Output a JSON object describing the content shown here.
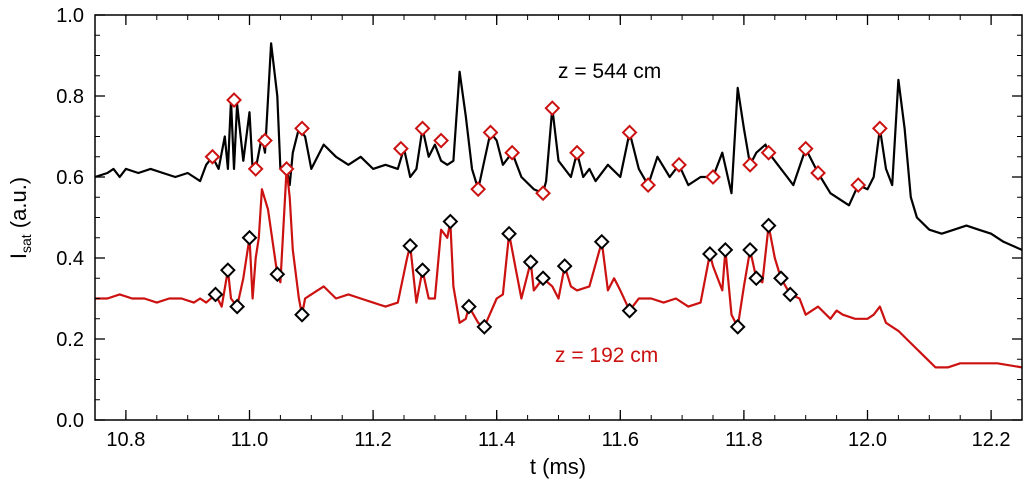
{
  "chart_data": {
    "type": "line",
    "title": "",
    "xlabel": "t (ms)",
    "ylabel": {
      "main": "I",
      "sub": "sat",
      "rest": " (a.u.)"
    },
    "xlim": [
      10.75,
      12.25
    ],
    "ylim": [
      0.0,
      1.0
    ],
    "x_ticks": [
      "10.8",
      "11.0",
      "11.2",
      "11.4",
      "11.6",
      "11.8",
      "12.0",
      "12.2"
    ],
    "x_tick_values": [
      10.8,
      11.0,
      11.2,
      11.4,
      11.6,
      11.8,
      12.0,
      12.2
    ],
    "y_ticks": [
      "0.0",
      "0.2",
      "0.4",
      "0.6",
      "0.8",
      "1.0"
    ],
    "y_tick_values": [
      0.0,
      0.2,
      0.4,
      0.6,
      0.8,
      1.0
    ],
    "grid": false,
    "series": [
      {
        "name": "z = 544 cm",
        "color": "#000000",
        "marker_color": "#cc1111",
        "points": [
          [
            10.75,
            0.6
          ],
          [
            10.77,
            0.61
          ],
          [
            10.78,
            0.62
          ],
          [
            10.79,
            0.6
          ],
          [
            10.8,
            0.62
          ],
          [
            10.82,
            0.61
          ],
          [
            10.84,
            0.62
          ],
          [
            10.86,
            0.61
          ],
          [
            10.88,
            0.6
          ],
          [
            10.9,
            0.61
          ],
          [
            10.91,
            0.6
          ],
          [
            10.92,
            0.59
          ],
          [
            10.93,
            0.63
          ],
          [
            10.94,
            0.65
          ],
          [
            10.95,
            0.62
          ],
          [
            10.96,
            0.7
          ],
          [
            10.965,
            0.62
          ],
          [
            10.97,
            0.79
          ],
          [
            10.975,
            0.62
          ],
          [
            10.98,
            0.78
          ],
          [
            10.99,
            0.64
          ],
          [
            11.0,
            0.76
          ],
          [
            11.005,
            0.62
          ],
          [
            11.01,
            0.62
          ],
          [
            11.02,
            0.7
          ],
          [
            11.025,
            0.66
          ],
          [
            11.035,
            0.93
          ],
          [
            11.045,
            0.8
          ],
          [
            11.05,
            0.62
          ],
          [
            11.06,
            0.62
          ],
          [
            11.065,
            0.58
          ],
          [
            11.07,
            0.66
          ],
          [
            11.08,
            0.72
          ],
          [
            11.09,
            0.7
          ],
          [
            11.1,
            0.62
          ],
          [
            11.12,
            0.68
          ],
          [
            11.14,
            0.65
          ],
          [
            11.16,
            0.63
          ],
          [
            11.18,
            0.65
          ],
          [
            11.2,
            0.62
          ],
          [
            11.22,
            0.63
          ],
          [
            11.24,
            0.62
          ],
          [
            11.25,
            0.67
          ],
          [
            11.26,
            0.6
          ],
          [
            11.27,
            0.62
          ],
          [
            11.28,
            0.72
          ],
          [
            11.29,
            0.65
          ],
          [
            11.3,
            0.68
          ],
          [
            11.31,
            0.64
          ],
          [
            11.32,
            0.63
          ],
          [
            11.33,
            0.64
          ],
          [
            11.34,
            0.86
          ],
          [
            11.35,
            0.75
          ],
          [
            11.36,
            0.62
          ],
          [
            11.37,
            0.57
          ],
          [
            11.38,
            0.64
          ],
          [
            11.39,
            0.71
          ],
          [
            11.4,
            0.69
          ],
          [
            11.41,
            0.63
          ],
          [
            11.425,
            0.66
          ],
          [
            11.44,
            0.6
          ],
          [
            11.46,
            0.57
          ],
          [
            11.475,
            0.56
          ],
          [
            11.48,
            0.59
          ],
          [
            11.49,
            0.77
          ],
          [
            11.5,
            0.64
          ],
          [
            11.52,
            0.6
          ],
          [
            11.53,
            0.66
          ],
          [
            11.54,
            0.6
          ],
          [
            11.55,
            0.62
          ],
          [
            11.56,
            0.59
          ],
          [
            11.58,
            0.63
          ],
          [
            11.6,
            0.6
          ],
          [
            11.615,
            0.71
          ],
          [
            11.63,
            0.62
          ],
          [
            11.645,
            0.58
          ],
          [
            11.66,
            0.65
          ],
          [
            11.68,
            0.6
          ],
          [
            11.695,
            0.63
          ],
          [
            11.71,
            0.58
          ],
          [
            11.73,
            0.6
          ],
          [
            11.75,
            0.6
          ],
          [
            11.765,
            0.66
          ],
          [
            11.78,
            0.56
          ],
          [
            11.79,
            0.82
          ],
          [
            11.8,
            0.72
          ],
          [
            11.81,
            0.63
          ],
          [
            11.82,
            0.66
          ],
          [
            11.835,
            0.68
          ],
          [
            11.84,
            0.66
          ],
          [
            11.86,
            0.62
          ],
          [
            11.87,
            0.6
          ],
          [
            11.88,
            0.58
          ],
          [
            11.9,
            0.67
          ],
          [
            11.92,
            0.61
          ],
          [
            11.94,
            0.56
          ],
          [
            11.96,
            0.54
          ],
          [
            11.97,
            0.53
          ],
          [
            11.985,
            0.58
          ],
          [
            12.0,
            0.57
          ],
          [
            12.01,
            0.6
          ],
          [
            12.02,
            0.72
          ],
          [
            12.03,
            0.62
          ],
          [
            12.04,
            0.58
          ],
          [
            12.05,
            0.84
          ],
          [
            12.06,
            0.72
          ],
          [
            12.07,
            0.55
          ],
          [
            12.08,
            0.5
          ],
          [
            12.1,
            0.47
          ],
          [
            12.12,
            0.46
          ],
          [
            12.14,
            0.47
          ],
          [
            12.16,
            0.48
          ],
          [
            12.18,
            0.47
          ],
          [
            12.2,
            0.46
          ],
          [
            12.22,
            0.44
          ],
          [
            12.25,
            0.42
          ]
        ],
        "markers": [
          [
            10.94,
            0.65
          ],
          [
            10.975,
            0.79
          ],
          [
            11.01,
            0.62
          ],
          [
            11.025,
            0.69
          ],
          [
            11.06,
            0.62
          ],
          [
            11.085,
            0.72
          ],
          [
            11.245,
            0.67
          ],
          [
            11.28,
            0.72
          ],
          [
            11.31,
            0.69
          ],
          [
            11.37,
            0.57
          ],
          [
            11.39,
            0.71
          ],
          [
            11.425,
            0.66
          ],
          [
            11.475,
            0.56
          ],
          [
            11.49,
            0.77
          ],
          [
            11.53,
            0.66
          ],
          [
            11.615,
            0.71
          ],
          [
            11.645,
            0.58
          ],
          [
            11.695,
            0.63
          ],
          [
            11.75,
            0.6
          ],
          [
            11.81,
            0.63
          ],
          [
            11.84,
            0.66
          ],
          [
            11.9,
            0.67
          ],
          [
            11.92,
            0.61
          ],
          [
            11.985,
            0.58
          ],
          [
            12.02,
            0.72
          ]
        ]
      },
      {
        "name": "z = 192 cm",
        "color": "#cc1111",
        "marker_color": "#000000",
        "points": [
          [
            10.75,
            0.3
          ],
          [
            10.77,
            0.3
          ],
          [
            10.79,
            0.31
          ],
          [
            10.81,
            0.3
          ],
          [
            10.83,
            0.3
          ],
          [
            10.85,
            0.29
          ],
          [
            10.87,
            0.3
          ],
          [
            10.89,
            0.3
          ],
          [
            10.91,
            0.29
          ],
          [
            10.92,
            0.3
          ],
          [
            10.93,
            0.29
          ],
          [
            10.945,
            0.31
          ],
          [
            10.955,
            0.28
          ],
          [
            10.965,
            0.37
          ],
          [
            10.97,
            0.3
          ],
          [
            10.98,
            0.28
          ],
          [
            10.99,
            0.35
          ],
          [
            11.0,
            0.45
          ],
          [
            11.005,
            0.3
          ],
          [
            11.01,
            0.4
          ],
          [
            11.015,
            0.45
          ],
          [
            11.02,
            0.57
          ],
          [
            11.03,
            0.52
          ],
          [
            11.045,
            0.36
          ],
          [
            11.05,
            0.34
          ],
          [
            11.06,
            0.62
          ],
          [
            11.065,
            0.55
          ],
          [
            11.07,
            0.42
          ],
          [
            11.08,
            0.3
          ],
          [
            11.085,
            0.26
          ],
          [
            11.09,
            0.3
          ],
          [
            11.1,
            0.31
          ],
          [
            11.12,
            0.33
          ],
          [
            11.14,
            0.3
          ],
          [
            11.16,
            0.31
          ],
          [
            11.18,
            0.3
          ],
          [
            11.2,
            0.29
          ],
          [
            11.22,
            0.28
          ],
          [
            11.24,
            0.29
          ],
          [
            11.255,
            0.4
          ],
          [
            11.26,
            0.43
          ],
          [
            11.27,
            0.29
          ],
          [
            11.28,
            0.37
          ],
          [
            11.29,
            0.3
          ],
          [
            11.3,
            0.3
          ],
          [
            11.31,
            0.47
          ],
          [
            11.32,
            0.45
          ],
          [
            11.325,
            0.49
          ],
          [
            11.33,
            0.33
          ],
          [
            11.34,
            0.24
          ],
          [
            11.35,
            0.25
          ],
          [
            11.355,
            0.28
          ],
          [
            11.37,
            0.24
          ],
          [
            11.38,
            0.23
          ],
          [
            11.4,
            0.3
          ],
          [
            11.41,
            0.31
          ],
          [
            11.42,
            0.46
          ],
          [
            11.43,
            0.38
          ],
          [
            11.44,
            0.3
          ],
          [
            11.455,
            0.39
          ],
          [
            11.46,
            0.32
          ],
          [
            11.475,
            0.35
          ],
          [
            11.49,
            0.33
          ],
          [
            11.5,
            0.3
          ],
          [
            11.51,
            0.38
          ],
          [
            11.52,
            0.33
          ],
          [
            11.53,
            0.32
          ],
          [
            11.55,
            0.33
          ],
          [
            11.57,
            0.44
          ],
          [
            11.58,
            0.32
          ],
          [
            11.59,
            0.35
          ],
          [
            11.6,
            0.32
          ],
          [
            11.615,
            0.27
          ],
          [
            11.63,
            0.3
          ],
          [
            11.65,
            0.3
          ],
          [
            11.67,
            0.29
          ],
          [
            11.69,
            0.3
          ],
          [
            11.71,
            0.28
          ],
          [
            11.73,
            0.29
          ],
          [
            11.745,
            0.41
          ],
          [
            11.75,
            0.38
          ],
          [
            11.765,
            0.32
          ],
          [
            11.77,
            0.42
          ],
          [
            11.78,
            0.26
          ],
          [
            11.79,
            0.23
          ],
          [
            11.8,
            0.33
          ],
          [
            11.81,
            0.42
          ],
          [
            11.82,
            0.35
          ],
          [
            11.83,
            0.34
          ],
          [
            11.84,
            0.48
          ],
          [
            11.85,
            0.4
          ],
          [
            11.86,
            0.35
          ],
          [
            11.875,
            0.31
          ],
          [
            11.89,
            0.3
          ],
          [
            11.9,
            0.26
          ],
          [
            11.92,
            0.28
          ],
          [
            11.94,
            0.25
          ],
          [
            11.95,
            0.27
          ],
          [
            11.96,
            0.26
          ],
          [
            11.98,
            0.25
          ],
          [
            12.0,
            0.25
          ],
          [
            12.01,
            0.26
          ],
          [
            12.02,
            0.28
          ],
          [
            12.03,
            0.24
          ],
          [
            12.05,
            0.22
          ],
          [
            12.07,
            0.19
          ],
          [
            12.09,
            0.16
          ],
          [
            12.11,
            0.13
          ],
          [
            12.13,
            0.13
          ],
          [
            12.15,
            0.14
          ],
          [
            12.18,
            0.14
          ],
          [
            12.21,
            0.14
          ],
          [
            12.25,
            0.13
          ]
        ],
        "markers": [
          [
            10.945,
            0.31
          ],
          [
            10.965,
            0.37
          ],
          [
            10.98,
            0.28
          ],
          [
            11.0,
            0.45
          ],
          [
            11.045,
            0.36
          ],
          [
            11.085,
            0.26
          ],
          [
            11.26,
            0.43
          ],
          [
            11.28,
            0.37
          ],
          [
            11.325,
            0.49
          ],
          [
            11.355,
            0.28
          ],
          [
            11.38,
            0.23
          ],
          [
            11.42,
            0.46
          ],
          [
            11.455,
            0.39
          ],
          [
            11.475,
            0.35
          ],
          [
            11.51,
            0.38
          ],
          [
            11.57,
            0.44
          ],
          [
            11.615,
            0.27
          ],
          [
            11.745,
            0.41
          ],
          [
            11.77,
            0.42
          ],
          [
            11.79,
            0.23
          ],
          [
            11.81,
            0.42
          ],
          [
            11.82,
            0.35
          ],
          [
            11.84,
            0.48
          ],
          [
            11.86,
            0.35
          ],
          [
            11.875,
            0.31
          ]
        ]
      }
    ]
  }
}
